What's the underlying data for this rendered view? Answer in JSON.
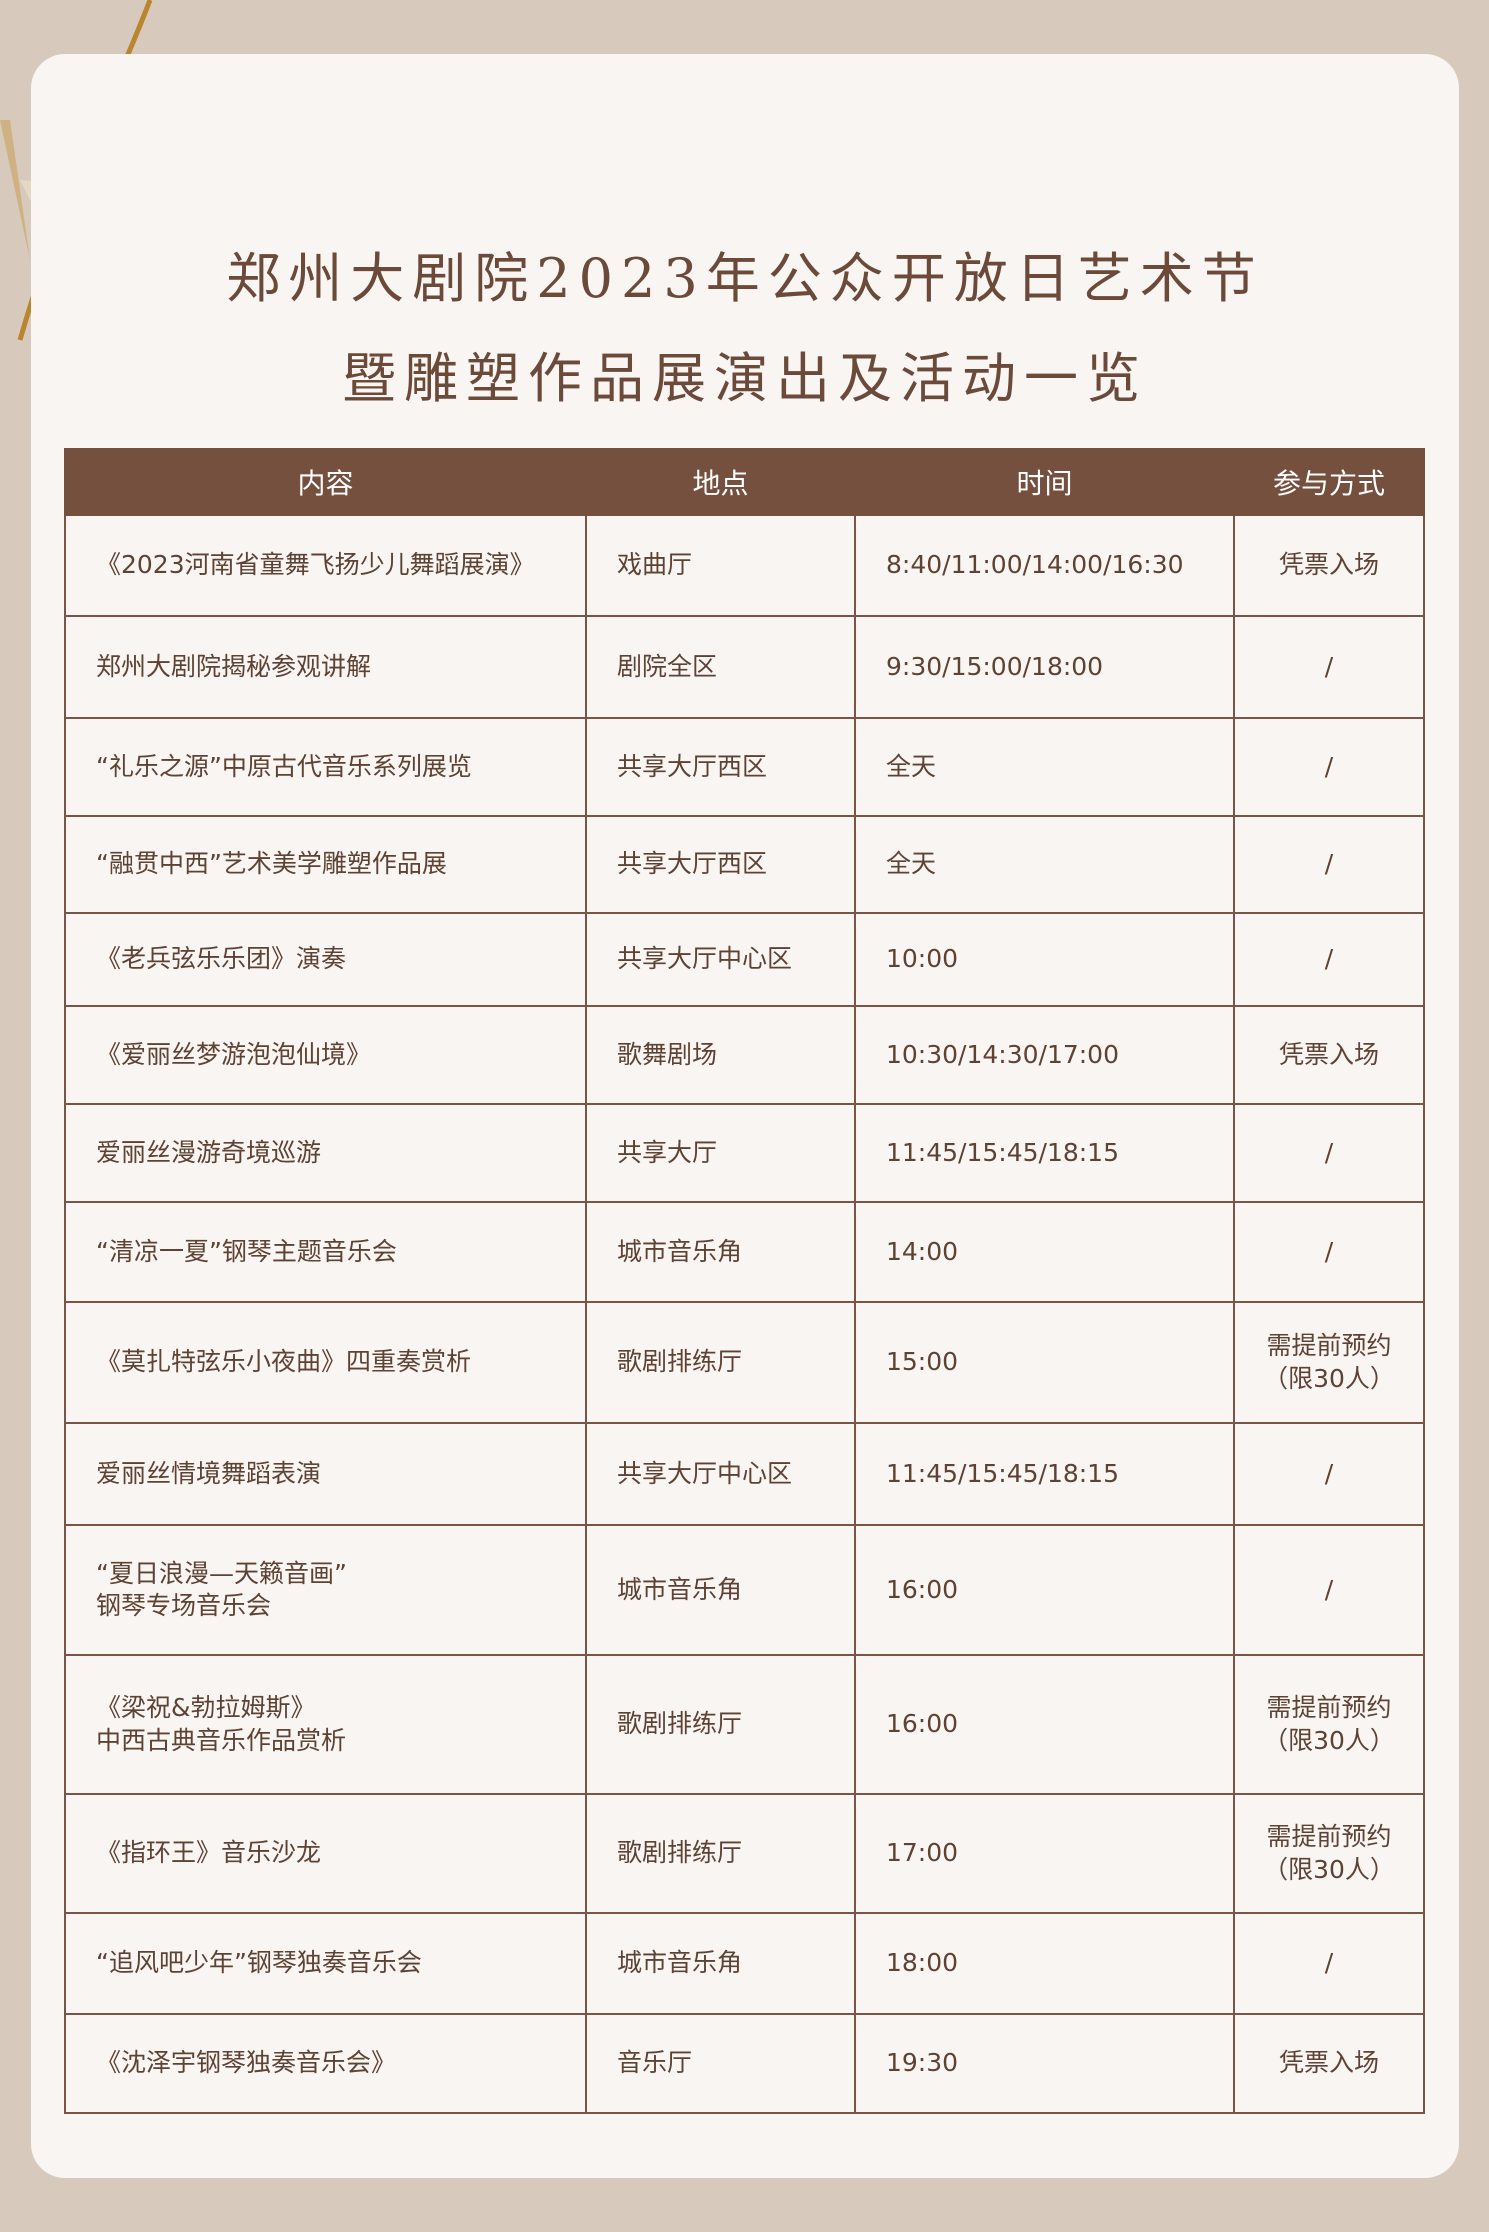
{
  "title": {
    "line1": "郑州大剧院2023年公众开放日艺术节",
    "line2": "暨雕塑作品展演出及活动一览"
  },
  "colors": {
    "header_bg": "#76503e",
    "text": "#6b4a3a",
    "background": "#d8c9bd",
    "card": "#f8f5f2"
  },
  "table": {
    "headers": [
      "内容",
      "地点",
      "时间",
      "参与方式"
    ],
    "rows": [
      {
        "content": "《2023河南省童舞飞扬少儿舞蹈展演》",
        "place": "戏曲厅",
        "time": "8:40/11:00/14:00/16:30",
        "mode": "凭票入场"
      },
      {
        "content": "郑州大剧院揭秘参观讲解",
        "place": "剧院全区",
        "time": "9:30/15:00/18:00",
        "mode": "/"
      },
      {
        "content": "“礼乐之源”中原古代音乐系列展览",
        "place": "共享大厅西区",
        "time": "全天",
        "mode": "/"
      },
      {
        "content": "“融贯中西”艺术美学雕塑作品展",
        "place": "共享大厅西区",
        "time": "全天",
        "mode": "/"
      },
      {
        "content": "《老兵弦乐乐团》演奏",
        "place": "共享大厅中心区",
        "time": "10:00",
        "mode": "/"
      },
      {
        "content": "《爱丽丝梦游泡泡仙境》",
        "place": "歌舞剧场",
        "time": "10:30/14:30/17:00",
        "mode": "凭票入场"
      },
      {
        "content": "爱丽丝漫游奇境巡游",
        "place": "共享大厅",
        "time": "11:45/15:45/18:15",
        "mode": "/"
      },
      {
        "content": "“清凉一夏”钢琴主题音乐会",
        "place": "城市音乐角",
        "time": "14:00",
        "mode": "/"
      },
      {
        "content": "《莫扎特弦乐小夜曲》四重奏赏析",
        "place": "歌剧排练厅",
        "time": "15:00",
        "mode": "需提前预约\n（限30人）"
      },
      {
        "content": "爱丽丝情境舞蹈表演",
        "place": "共享大厅中心区",
        "time": "11:45/15:45/18:15",
        "mode": "/"
      },
      {
        "content": "“夏日浪漫—天籁音画”\n钢琴专场音乐会",
        "place": "城市音乐角",
        "time": "16:00",
        "mode": "/"
      },
      {
        "content": "《梁祝&勃拉姆斯》\n中西古典音乐作品赏析",
        "place": "歌剧排练厅",
        "time": "16:00",
        "mode": "需提前预约\n（限30人）"
      },
      {
        "content": "《指环王》音乐沙龙",
        "place": "歌剧排练厅",
        "time": "17:00",
        "mode": "需提前预约\n（限30人）"
      },
      {
        "content": "“追风吧少年”钢琴独奏音乐会",
        "place": "城市音乐角",
        "time": "18:00",
        "mode": "/"
      },
      {
        "content": "《沈泽宇钢琴独奏音乐会》",
        "place": "音乐厅",
        "time": "19:30",
        "mode": "凭票入场"
      }
    ]
  }
}
